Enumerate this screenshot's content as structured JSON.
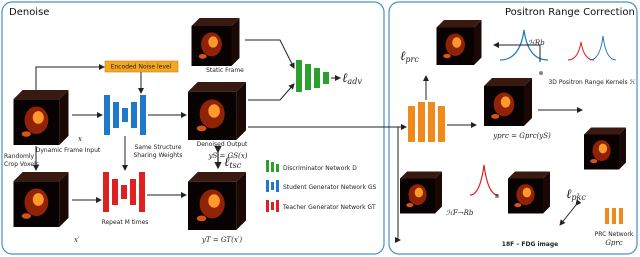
{
  "panels": {
    "denoise": {
      "title": "Denoise"
    },
    "prc": {
      "title": "Positron Range Correction"
    }
  },
  "denoise": {
    "noise_level": "Encoded Noise level",
    "static_frame": "Static Frame",
    "adv_loss": {
      "symbol": "ℓ",
      "sub": "adv"
    },
    "input_label": "Dynamic Frame Input",
    "input_symbol": "x",
    "shared_weights": [
      "Same Structure",
      "Sharing Weights"
    ],
    "output_label": "Denoised Output",
    "output_eq": "yS = GS(x)",
    "tsc_loss": {
      "symbol": "ℓ",
      "sub": "tsc"
    },
    "crop": [
      "Randomly",
      "Crop Voxels"
    ],
    "crop_symbol": "x′",
    "repeat": "Repeat M times",
    "teacher_eq": "yT = GT(x′)",
    "legend": [
      "Discriminator Network D",
      "Student Generator Network GS",
      "Teacher Generator Network GT"
    ]
  },
  "correction": {
    "prc_loss": {
      "symbol": "ℓ",
      "sub": "prc"
    },
    "kernel_rb": "ℋRb",
    "kernels_label": "3D Positron Range Kernels ℋ",
    "prc_eq": "yprc = Gprc(yS)",
    "pkc_loss": {
      "symbol": "ℓ",
      "sub": "pkc"
    },
    "kernel_f_rb": "ℋF→Rb",
    "fdg_label": "18F – FDG image",
    "prc_network": [
      "PRC Network",
      "Gprc"
    ]
  }
}
